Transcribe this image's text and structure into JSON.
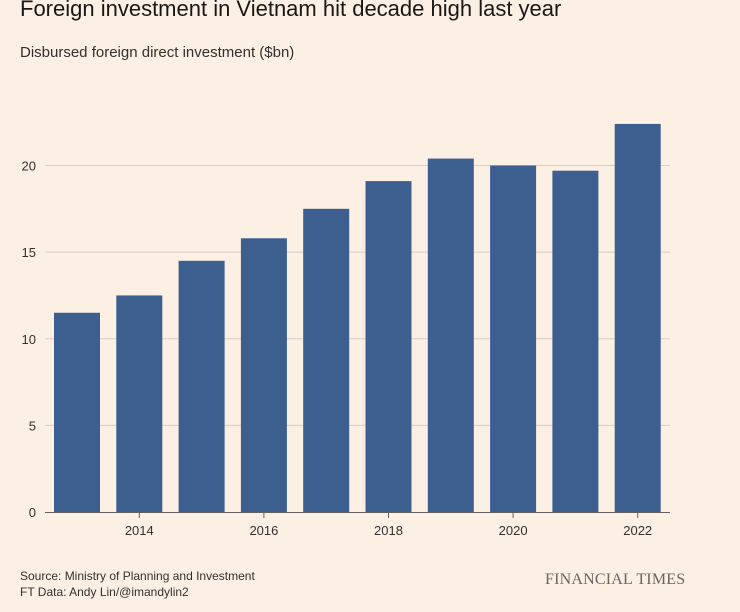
{
  "chart_data": {
    "type": "bar",
    "title": "Foreign investment in Vietnam hit decade high last year",
    "subtitle": "Disbursed foreign direct investment ($bn)",
    "x": [
      2013,
      2014,
      2015,
      2016,
      2017,
      2018,
      2019,
      2020,
      2021,
      2022
    ],
    "values": [
      11.5,
      12.5,
      14.5,
      15.8,
      17.5,
      19.1,
      20.4,
      20.0,
      19.7,
      22.4
    ],
    "x_tick_labels": [
      "2014",
      "2016",
      "2018",
      "2020",
      "2022"
    ],
    "x_tick_values": [
      2014,
      2016,
      2018,
      2020,
      2022
    ],
    "y_tick_labels": [
      "0",
      "5",
      "10",
      "15",
      "20"
    ],
    "y_tick_values": [
      0,
      5,
      10,
      15,
      20
    ],
    "ylim": [
      0,
      22.8
    ],
    "grid": true,
    "bar_color": "#3d5f8f"
  },
  "footer": {
    "source": "Source: Ministry of Planning and Investment",
    "credit": "FT Data: Andy Lin/@imandylin2",
    "brand": "FINANCIAL TIMES"
  }
}
